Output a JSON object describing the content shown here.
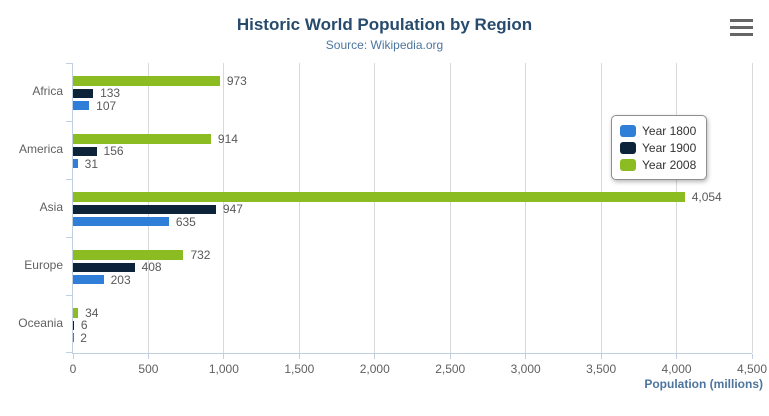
{
  "header": {
    "title": "Historic World Population by Region",
    "subtitle": "Source: Wikipedia.org"
  },
  "chart_data": {
    "type": "bar",
    "orientation": "horizontal",
    "title": "Historic World Population by Region",
    "subtitle": "Source: Wikipedia.org",
    "categories": [
      "Africa",
      "America",
      "Asia",
      "Europe",
      "Oceania"
    ],
    "series": [
      {
        "name": "Year 1800",
        "color": "#2f7ed8",
        "values": [
          107,
          31,
          635,
          203,
          2
        ]
      },
      {
        "name": "Year 1900",
        "color": "#0d233a",
        "values": [
          133,
          156,
          947,
          408,
          6
        ]
      },
      {
        "name": "Year 2008",
        "color": "#8bbc21",
        "values": [
          973,
          914,
          4054,
          732,
          34
        ]
      }
    ],
    "series_display_order_top_to_bottom": [
      "Year 2008",
      "Year 1900",
      "Year 1800"
    ],
    "xlabel": "Population (millions)",
    "xlim": [
      0,
      4500
    ],
    "x_ticks": [
      0,
      500,
      1000,
      1500,
      2000,
      2500,
      3000,
      3500,
      4000,
      4500
    ],
    "x_tick_labels": [
      "0",
      "500",
      "1,000",
      "1,500",
      "2,000",
      "2,500",
      "3,000",
      "3,500",
      "4,000",
      "4,500"
    ],
    "grid": true,
    "legend_position": "right-middle",
    "legend_items": [
      "Year 1800",
      "Year 1900",
      "Year 2008"
    ]
  },
  "colors": {
    "title": "#274b6d",
    "subtitle": "#4d759e",
    "axis_line": "#c0d0e0",
    "gridline": "#d9d9d9",
    "tick_label": "#606060",
    "data_label": "#595959",
    "axis_title": "#4d759e",
    "legend_text": "#333333",
    "menu_icon": "#666666",
    "background": "#ffffff"
  }
}
